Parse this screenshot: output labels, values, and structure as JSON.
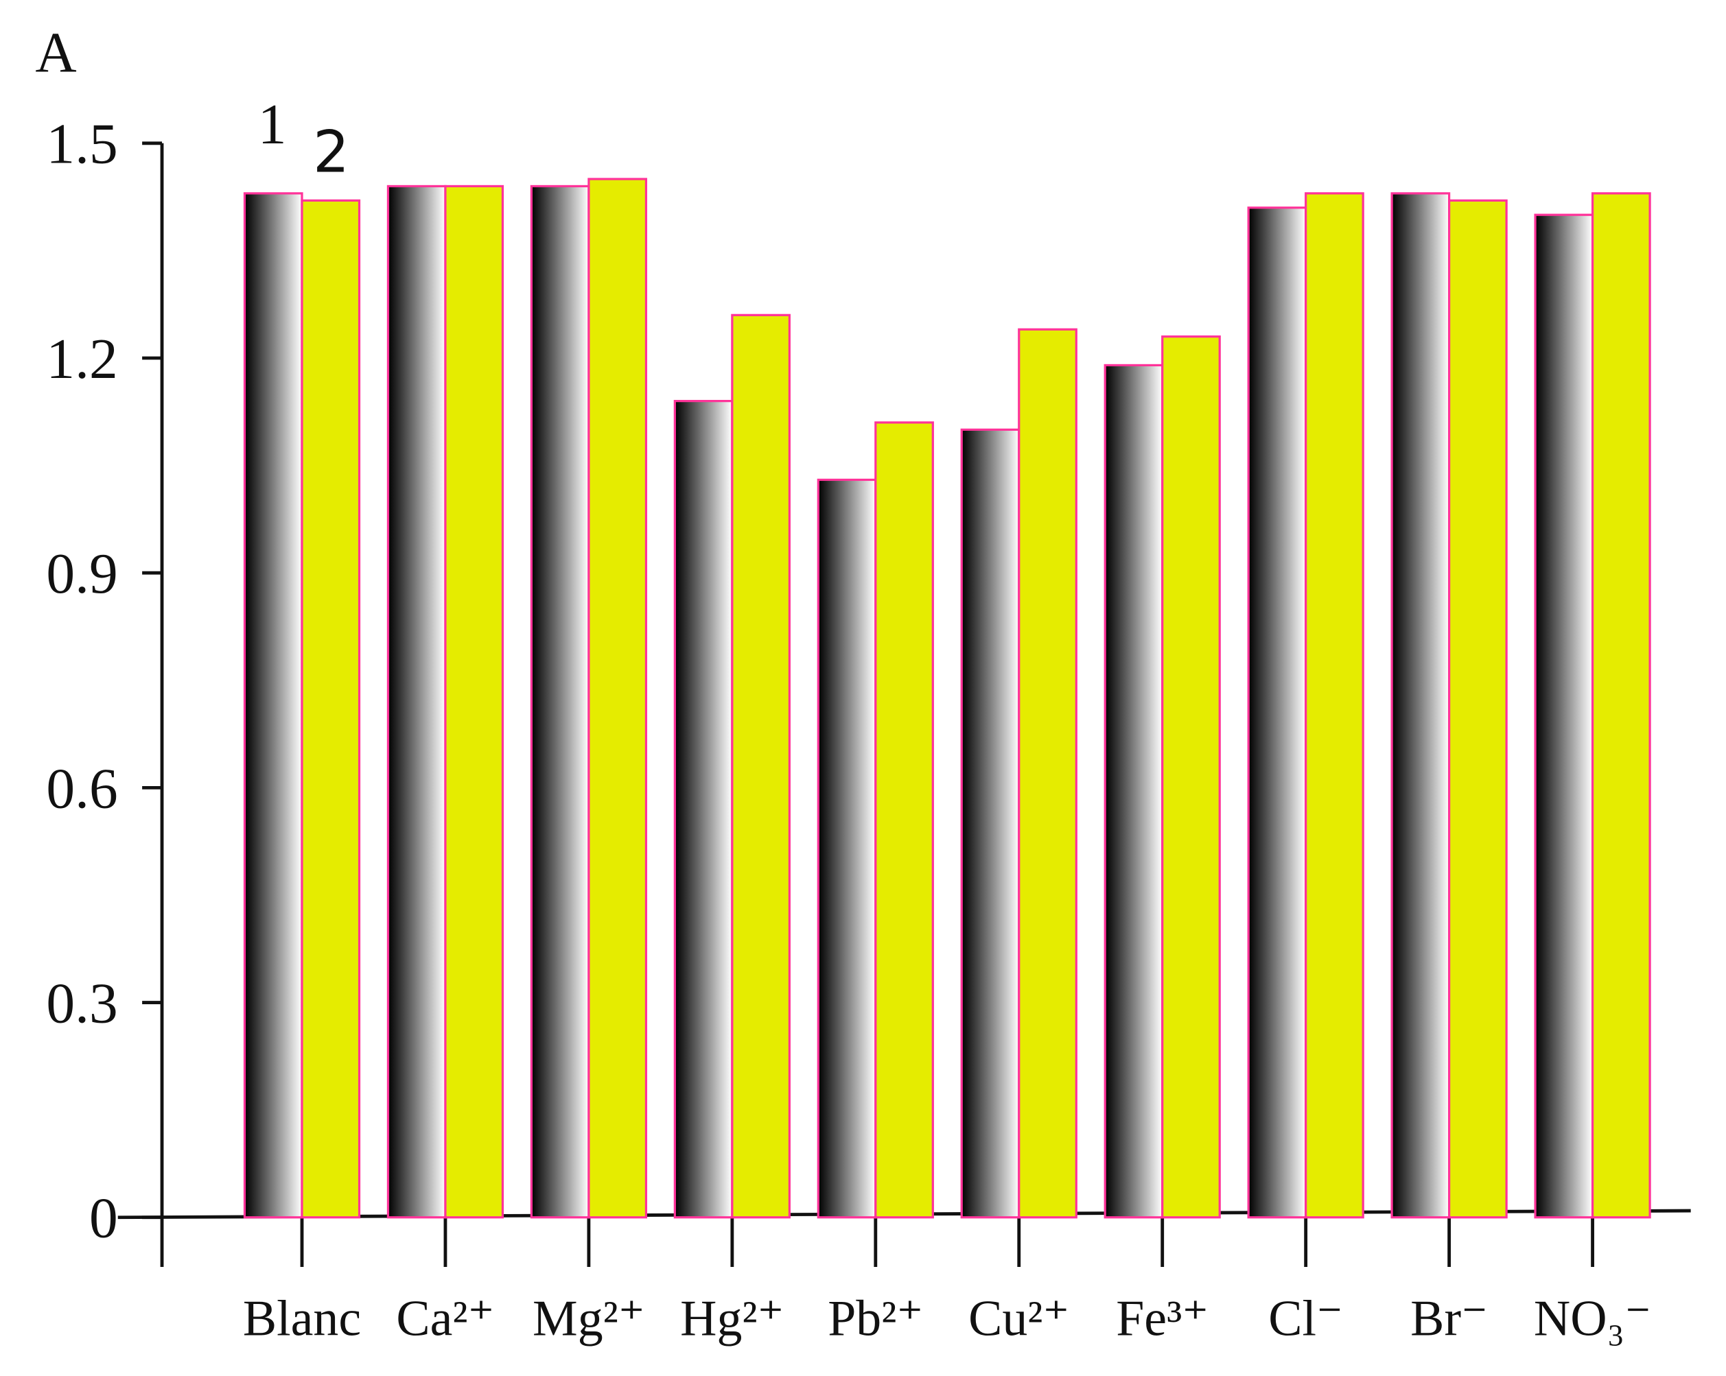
{
  "chart_data": {
    "type": "bar",
    "ylabel": "A",
    "categories": [
      "Blanc",
      "Ca²⁺",
      "Mg²⁺",
      "Hg²⁺",
      "Pb²⁺",
      "Cu²⁺",
      "Fe³⁺",
      "Cl⁻",
      "Br⁻",
      "NO₃⁻"
    ],
    "series": [
      {
        "name": "1",
        "color": "#000000",
        "values": [
          1.43,
          1.44,
          1.44,
          1.14,
          1.03,
          1.1,
          1.19,
          1.41,
          1.43,
          1.4
        ]
      },
      {
        "name": "2",
        "color": "#e5ec00",
        "values": [
          1.42,
          1.44,
          1.45,
          1.26,
          1.11,
          1.24,
          1.23,
          1.43,
          1.42,
          1.43
        ]
      }
    ],
    "bar_edge_color": "#ff3399",
    "ylim": [
      0,
      1.5
    ],
    "yticks": [
      0,
      0.3,
      0.6,
      0.9,
      1.2,
      1.5
    ]
  }
}
